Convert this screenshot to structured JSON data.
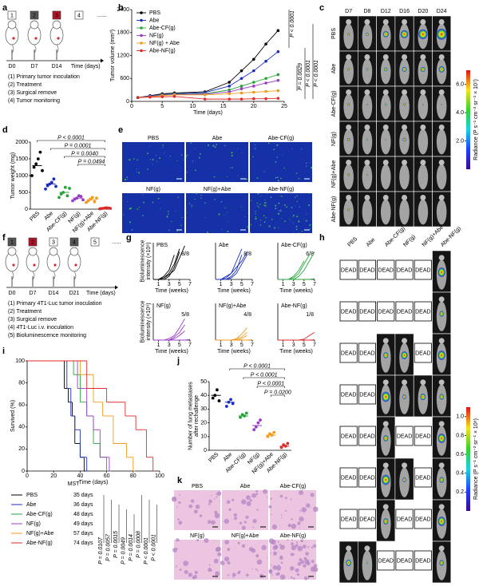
{
  "figure": {
    "letters": [
      "a",
      "b",
      "c",
      "d",
      "e",
      "f",
      "g",
      "h",
      "i",
      "j",
      "k"
    ],
    "panel_a": {
      "steps": [
        "1",
        "2",
        "3",
        "4"
      ],
      "days": [
        "D0",
        "D7",
        "D14"
      ],
      "time_label": "Time (days)",
      "ellipsis": "......",
      "notes": [
        "(1) Primary tumor inoculation",
        "(2) Treatment",
        "(3) Surgical remove",
        "(4) Tumor monitoring"
      ]
    },
    "panel_c": {
      "columns": [
        "D7",
        "D8",
        "D12",
        "D16",
        "D20",
        "D24"
      ],
      "rows": [
        "PBS",
        "Abe",
        "Abe-CF(g)",
        "NF(g)",
        "NF(g)+Abe",
        "Abe-NF(g)"
      ],
      "colorbar_lim": [
        0,
        7
      ],
      "colorbar_ticks": [
        {
          "value": 6,
          "label": "6.0"
        },
        {
          "value": 4,
          "label": "4.0"
        },
        {
          "value": 2,
          "label": "2.0"
        }
      ],
      "colorbar_label": "Radiance (P s⁻¹ cm⁻² sr⁻¹ × 10⁷)"
    },
    "panel_e": {
      "labels": [
        "PBS",
        "Abe",
        "Abe-CF(g)",
        "NF(g)",
        "NF(g)+Abe",
        "Abe-NF(g)"
      ]
    },
    "panel_f": {
      "steps": [
        "1",
        "2",
        "3",
        "4",
        "5"
      ],
      "days": [
        "D0",
        "D7",
        "D14",
        "D21"
      ],
      "time_label": "Time (days)",
      "ellipsis": "......",
      "notes": [
        "(1) Primary 4T1-Luc tumor inoculation",
        "(2) Treatment",
        "(3) Surgical remove",
        "(4) 4T1-Luc i.v. inoculation",
        "(5) Bioluminescence monitoring"
      ]
    },
    "panel_h": {
      "columns": [
        "PBS",
        "Abe",
        "Abe-CF(g)",
        "NF(g)",
        "NF(g)+Abe",
        "Abe-NF(g)"
      ],
      "cells": [
        [
          "DEAD",
          "DEAD",
          "DEAD",
          "DEAD",
          "DEAD",
          null
        ],
        [
          "DEAD",
          "DEAD",
          "DEAD",
          "DEAD",
          "DEAD",
          null
        ],
        [
          "DEAD",
          "DEAD",
          null,
          null,
          "DEAD",
          null
        ],
        [
          "DEAD",
          "DEAD",
          null,
          null,
          null,
          null
        ],
        [
          "DEAD",
          "DEAD",
          null,
          "DEAD",
          "DEAD",
          null
        ],
        [
          "DEAD",
          "DEAD",
          null,
          null,
          "DEAD",
          null
        ],
        [
          "DEAD",
          "DEAD",
          null,
          "DEAD",
          "DEAD",
          null
        ],
        [
          null,
          null,
          "DEAD",
          "DEAD",
          "DEAD",
          null
        ]
      ],
      "colorbar_lim": [
        0,
        1.1
      ],
      "colorbar_ticks": [
        {
          "value": 1,
          "label": "1.0"
        },
        {
          "value": 0.8,
          "label": "0.8"
        },
        {
          "value": 0.6,
          "label": "0.6"
        },
        {
          "value": 0.4,
          "label": "0.4"
        },
        {
          "value": 0.2,
          "label": "0.2"
        }
      ],
      "colorbar_label": "Radiance (P s⁻¹ cm⁻² sr⁻¹ × 10⁸)"
    },
    "panel_k": {
      "labels": [
        "PBS",
        "Abe",
        "Abe-CF(g)",
        "NF(g)",
        "NF(g)+Abe",
        "Abe-NF(g)"
      ]
    },
    "mst": {
      "title": "MST",
      "days": [
        "35 days",
        "36 days",
        "48 days",
        "49 days",
        "57 days",
        "74 days"
      ],
      "p_values": [
        "P = 0.0107",
        "P = 0.0057",
        "P = 0.0015",
        "P = 0.0049",
        "P = 0.0014",
        "P = 0.0008",
        "P < 0.0001",
        "P < 0.0001"
      ]
    }
  },
  "chart_data": [
    {
      "type": "line",
      "xlabel": "Time (days)",
      "ylabel": "Tumor volume (mm³)",
      "xlim": [
        0,
        25
      ],
      "xticks": [
        0,
        5,
        10,
        15,
        20,
        25
      ],
      "ylim": [
        0,
        2400
      ],
      "yticks": [
        0,
        600,
        1200,
        1800,
        2400
      ],
      "legend": "top-left",
      "markers": true,
      "x": [
        1,
        3,
        5,
        7,
        12,
        16,
        18,
        20,
        22,
        24
      ],
      "series": [
        {
          "name": "PBS",
          "color": "#000000",
          "values": [
            100,
            150,
            200,
            220,
            250,
            500,
            800,
            1100,
            1500,
            1850
          ]
        },
        {
          "name": "Abe",
          "color": "#1a2fbf",
          "values": [
            100,
            140,
            180,
            200,
            230,
            400,
            600,
            800,
            1050,
            1300
          ]
        },
        {
          "name": "Abe-CF(g)",
          "color": "#27a53a",
          "values": [
            100,
            130,
            170,
            190,
            200,
            300,
            400,
            500,
            600,
            700
          ]
        },
        {
          "name": "NF(g)",
          "color": "#9b3cc4",
          "values": [
            100,
            130,
            160,
            180,
            190,
            250,
            330,
            400,
            480,
            550
          ]
        },
        {
          "name": "NF(g) + Abe",
          "color": "#f29b1e",
          "values": [
            100,
            120,
            150,
            170,
            170,
            200,
            220,
            240,
            260,
            280
          ]
        },
        {
          "name": "Abe-NF(g)",
          "color": "#e02a2a",
          "values": [
            100,
            110,
            120,
            130,
            60,
            60,
            60,
            70,
            70,
            80
          ]
        }
      ],
      "annotations": [
        "P < 0.0001",
        "P = 0.0029",
        "P < 0.0001",
        "P < 0.0001"
      ]
    },
    {
      "type": "dot",
      "ylabel": "Tumor weight (mg)",
      "ylim": [
        0,
        2000
      ],
      "yticks": [
        0,
        500,
        1000,
        1500,
        2000
      ],
      "categories": [
        "PBS",
        "Abe",
        "Abe-CF(g)",
        "NF(g)",
        "NF(g)+Abe",
        "Abe-NF(g)"
      ],
      "colors": [
        "#000000",
        "#1a2fbf",
        "#27a53a",
        "#9b3cc4",
        "#f29b1e",
        "#e02a2a"
      ],
      "values": [
        1300,
        750,
        500,
        330,
        280,
        30
      ],
      "points": [
        [
          1000,
          1250,
          1350,
          1500,
          1700,
          1150
        ],
        [
          600,
          700,
          750,
          800,
          900,
          680
        ],
        [
          350,
          450,
          500,
          650,
          400,
          620
        ],
        [
          250,
          300,
          330,
          400,
          380,
          280
        ],
        [
          200,
          250,
          300,
          350,
          220,
          330
        ],
        [
          10,
          20,
          30,
          40,
          35,
          25
        ]
      ],
      "comparisons": [
        "P < 0.0001",
        "P = 0.0001",
        "P = 0.0040",
        "P = 0.0494"
      ]
    },
    {
      "type": "line",
      "title": "PBS",
      "ratio": "8/8",
      "ylabel": [
        "Bioluminescence",
        "intensity (×10⁸)"
      ],
      "xlabel": "Time (weeks)",
      "xlim": [
        0,
        7
      ],
      "xticks": [
        1,
        3,
        5,
        7
      ],
      "ylim": [
        0,
        12
      ],
      "color": "#000000",
      "x": [
        0,
        1,
        2,
        3,
        4,
        5,
        6,
        7
      ],
      "series": [
        {
          "values": [
            0,
            0,
            0.5,
            2,
            5,
            10,
            null,
            null
          ]
        },
        {
          "values": [
            0,
            0,
            1,
            3,
            8,
            null,
            null,
            null
          ]
        },
        {
          "values": [
            0,
            0,
            0,
            1,
            4,
            9,
            null,
            null
          ]
        },
        {
          "values": [
            0,
            0,
            0.5,
            1.5,
            3,
            7,
            11,
            null
          ]
        }
      ]
    },
    {
      "type": "line",
      "title": "Abe",
      "ratio": "8/8",
      "xlabel": "Time (weeks)",
      "xlim": [
        0,
        7
      ],
      "xticks": [
        1,
        3,
        5,
        7
      ],
      "ylim": [
        0,
        12
      ],
      "color": "#1a2fbf",
      "x": [
        0,
        1,
        2,
        3,
        4,
        5,
        6,
        7
      ],
      "series": [
        {
          "values": [
            0,
            0,
            0.5,
            2,
            6,
            10,
            null,
            null
          ]
        },
        {
          "values": [
            0,
            0,
            0,
            1,
            3,
            8,
            null,
            null
          ]
        },
        {
          "values": [
            0,
            0,
            1,
            2,
            4,
            6,
            9,
            null
          ]
        },
        {
          "values": [
            0,
            0,
            0,
            0.5,
            2,
            5,
            8,
            null
          ]
        }
      ]
    },
    {
      "type": "line",
      "title": "Abe-CF(g)",
      "ratio": "6/8",
      "xlabel": "Time (weeks)",
      "xlim": [
        0,
        7
      ],
      "xticks": [
        1,
        3,
        5,
        7
      ],
      "ylim": [
        0,
        12
      ],
      "color": "#27a53a",
      "x": [
        0,
        1,
        2,
        3,
        4,
        5,
        6,
        7
      ],
      "series": [
        {
          "values": [
            0,
            0,
            0,
            0.5,
            2,
            5,
            8,
            null
          ]
        },
        {
          "values": [
            0,
            0,
            0,
            1,
            3,
            6,
            null,
            null
          ]
        },
        {
          "values": [
            0,
            0,
            0,
            0,
            1,
            3,
            6,
            9
          ]
        },
        {
          "values": [
            0,
            0,
            0,
            0,
            0,
            0,
            0,
            0.2
          ]
        }
      ]
    },
    {
      "type": "line",
      "title": "NF(g)",
      "ratio": "5/8",
      "ylabel": [
        "Bioluminescence",
        "intensity (×10⁸)"
      ],
      "xlabel": "Time (weeks)",
      "xlim": [
        0,
        7
      ],
      "xticks": [
        1,
        3,
        5,
        7
      ],
      "ylim": [
        0,
        12
      ],
      "color": "#9b3cc4",
      "x": [
        0,
        1,
        2,
        3,
        4,
        5,
        6,
        7
      ],
      "series": [
        {
          "values": [
            0,
            0,
            0,
            0.5,
            1.5,
            4,
            7,
            null
          ]
        },
        {
          "values": [
            0,
            0,
            0,
            0,
            1,
            2.5,
            5,
            null
          ]
        },
        {
          "values": [
            0,
            0,
            0,
            0,
            0.5,
            1.5,
            3,
            null
          ]
        },
        {
          "values": [
            0,
            0,
            0,
            0,
            0,
            0,
            0,
            0.2
          ]
        }
      ]
    },
    {
      "type": "line",
      "title": "NF(g)+Abe",
      "ratio": "4/8",
      "xlabel": "Time (weeks)",
      "xlim": [
        0,
        7
      ],
      "xticks": [
        1,
        3,
        5,
        7
      ],
      "ylim": [
        0,
        12
      ],
      "color": "#f29b1e",
      "x": [
        0,
        1,
        2,
        3,
        4,
        5,
        6,
        7
      ],
      "series": [
        {
          "values": [
            0,
            0,
            0,
            0,
            0.5,
            2,
            4,
            null
          ]
        },
        {
          "values": [
            0,
            0,
            0,
            0,
            0.3,
            1,
            2.5,
            null
          ]
        },
        {
          "values": [
            0,
            0,
            0,
            0,
            0,
            0.5,
            1.5,
            null
          ]
        },
        {
          "values": [
            0,
            0,
            0,
            0,
            0,
            0,
            0,
            0.1
          ]
        }
      ]
    },
    {
      "type": "line",
      "title": "Abe-NF(g)",
      "ratio": "1/8",
      "xlabel": "Time (weeks)",
      "xlim": [
        0,
        7
      ],
      "xticks": [
        1,
        3,
        5,
        7
      ],
      "ylim": [
        0,
        12
      ],
      "color": "#e02a2a",
      "x": [
        0,
        1,
        2,
        3,
        4,
        5,
        6,
        7
      ],
      "series": [
        {
          "values": [
            0,
            0,
            0,
            0,
            0,
            0.3,
            1.5,
            2.5
          ]
        },
        {
          "values": [
            0,
            0,
            0,
            0,
            0,
            0,
            0,
            0.1
          ]
        }
      ]
    },
    {
      "type": "line",
      "step": true,
      "xlabel": "Time (days)",
      "ylabel": "Survived (%)",
      "xlim": [
        0,
        100
      ],
      "xticks": [
        0,
        20,
        40,
        60,
        80,
        100
      ],
      "ylim": [
        0,
        100
      ],
      "yticks": [
        0,
        20,
        40,
        60,
        80,
        100
      ],
      "series": [
        {
          "name": "PBS",
          "color": "#000000",
          "x": [
            0,
            28,
            31,
            34,
            36,
            40,
            43
          ],
          "values": [
            100,
            75,
            62.5,
            50,
            25,
            12.5,
            0
          ]
        },
        {
          "name": "Abe",
          "color": "#1a2fbf",
          "x": [
            0,
            30,
            33,
            36,
            40,
            45
          ],
          "values": [
            100,
            75,
            50,
            37.5,
            12.5,
            0
          ]
        },
        {
          "name": "Abe-CF(g)",
          "color": "#27a53a",
          "x": [
            0,
            35,
            40,
            45,
            50,
            55,
            60
          ],
          "values": [
            100,
            87.5,
            62.5,
            50,
            25,
            12.5,
            0
          ]
        },
        {
          "name": "NF(g)",
          "color": "#9b3cc4",
          "x": [
            0,
            38,
            45,
            50,
            55,
            62
          ],
          "values": [
            100,
            75,
            50,
            37.5,
            12.5,
            0
          ]
        },
        {
          "name": "NF(g)+Abe",
          "color": "#f29b1e",
          "x": [
            0,
            40,
            50,
            57,
            65,
            75,
            80
          ],
          "values": [
            100,
            87.5,
            62.5,
            50,
            25,
            12.5,
            0
          ]
        },
        {
          "name": "Abe-NF(g)",
          "color": "#e02a2a",
          "x": [
            0,
            45,
            60,
            74,
            82,
            90,
            95
          ],
          "values": [
            100,
            75,
            62.5,
            50,
            37.5,
            12.5,
            0
          ]
        }
      ]
    },
    {
      "type": "dot",
      "ylabel": [
        "Number of lung metastases",
        "after rechallenge"
      ],
      "ylim": [
        0,
        50
      ],
      "yticks": [
        0,
        10,
        20,
        30,
        40,
        50
      ],
      "categories": [
        "PBS",
        "Abe",
        "Abe-CF(g)",
        "NF(g)",
        "NF(g)+Abe",
        "Abe-NF(g)"
      ],
      "colors": [
        "#000000",
        "#1a2fbf",
        "#27a53a",
        "#9b3cc4",
        "#f29b1e",
        "#e02a2a"
      ],
      "values": [
        40,
        35,
        25,
        18,
        11,
        3
      ],
      "points": [
        [
          38,
          40,
          44,
          36
        ],
        [
          32,
          35,
          37,
          34
        ],
        [
          24,
          26,
          25,
          27
        ],
        [
          15,
          17,
          20,
          22
        ],
        [
          10,
          12,
          11,
          13
        ],
        [
          2,
          4,
          3,
          5
        ]
      ],
      "comparisons": [
        "P < 0.0001",
        "P < 0.0001",
        "P < 0.0001",
        "P = 0.0200"
      ]
    }
  ]
}
